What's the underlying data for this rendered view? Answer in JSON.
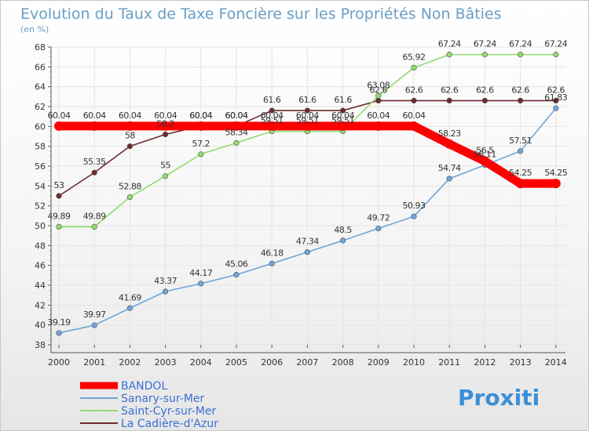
{
  "chart_data": {
    "type": "line",
    "title": "Evolution du Taux de Taxe Foncière sur les Propriétés Non Bâties",
    "ylabel": "(en %)",
    "ylim": [
      38,
      68
    ],
    "yticks": [
      38,
      40,
      42,
      44,
      46,
      48,
      50,
      52,
      54,
      56,
      58,
      60,
      62,
      64,
      66,
      68
    ],
    "categories": [
      "2000",
      "2001",
      "2002",
      "2003",
      "2004",
      "2005",
      "2006",
      "2007",
      "2008",
      "2009",
      "2010",
      "2011",
      "2012",
      "2013",
      "2014"
    ],
    "series": [
      {
        "name": "La Cadière-d'Azur",
        "color": "#6b2a2f",
        "values": [
          53,
          55.35,
          58,
          59.2,
          60.04,
          60.04,
          61.6,
          61.6,
          61.6,
          62.6,
          62.6,
          62.6,
          62.6,
          62.6,
          62.6
        ],
        "labels": [
          "53",
          "55.35",
          "58",
          "59.2",
          "60.04",
          "60.04",
          "61.6",
          "61.6",
          "61.6",
          "62.6",
          "62.6",
          "62.6",
          "62.6",
          "62.6",
          "62.6"
        ]
      },
      {
        "name": "Saint-Cyr-sur-Mer",
        "color": "#90dc6c",
        "values": [
          49.89,
          49.89,
          52.88,
          55,
          57.2,
          58.34,
          59.51,
          59.51,
          59.51,
          63.08,
          65.92,
          67.24,
          67.24,
          67.24,
          67.24
        ],
        "labels": [
          "49.89",
          "49.89",
          "52.88",
          "55",
          "57.2",
          "58.34",
          "59.51",
          "59.51",
          "59.51",
          "63.08",
          "65.92",
          "67.24",
          "67.24",
          "67.24",
          "67.24"
        ]
      },
      {
        "name": "Sanary-sur-Mer",
        "color": "#6ea6d8",
        "values": [
          39.19,
          39.97,
          41.69,
          43.37,
          44.17,
          45.06,
          46.18,
          47.34,
          48.5,
          49.72,
          50.93,
          54.74,
          56.11,
          57.51,
          61.83
        ],
        "labels": [
          "39.19",
          "39.97",
          "41.69",
          "43.37",
          "44.17",
          "45.06",
          "46.18",
          "47.34",
          "48.5",
          "49.72",
          "50.93",
          "54.74",
          "56.11",
          "57.51",
          "61.83"
        ]
      },
      {
        "name": "BANDOL",
        "color": "#ff0000",
        "values": [
          60.04,
          60.04,
          60.04,
          60.04,
          60.04,
          60.04,
          60.04,
          60.04,
          60.04,
          60.04,
          60.04,
          58.23,
          56.5,
          54.25,
          54.25
        ],
        "labels": [
          "60.04",
          "60.04",
          "60.04",
          "60.04",
          "60.04",
          "60.04",
          "60.04",
          "60.04",
          "60.04",
          "60.04",
          "60.04",
          "58.23",
          "56.5",
          "54.25",
          "54.25"
        ]
      }
    ],
    "legend_order": [
      "BANDOL",
      "Sanary-sur-Mer",
      "Saint-Cyr-sur-Mer",
      "La Cadière-d'Azur"
    ],
    "legend_placement": "bottom-left"
  },
  "logo": {
    "text": "Proxiti"
  }
}
